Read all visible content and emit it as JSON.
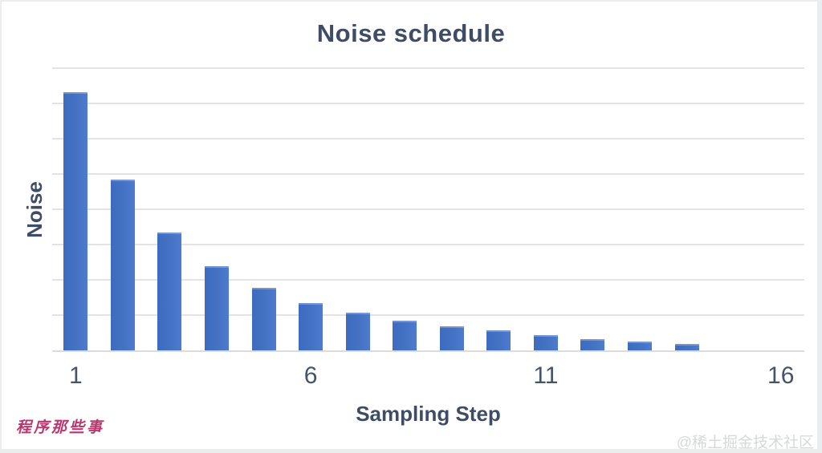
{
  "page": {
    "background": "#ffffff"
  },
  "chart_data": {
    "type": "bar",
    "title": "Noise schedule",
    "xlabel": "Sampling Step",
    "ylabel": "Noise",
    "categories": [
      1,
      2,
      3,
      4,
      5,
      6,
      7,
      8,
      9,
      10,
      11,
      12,
      13,
      14,
      15,
      16
    ],
    "values": [
      7.32,
      4.84,
      3.34,
      2.39,
      1.77,
      1.34,
      1.07,
      0.84,
      0.68,
      0.57,
      0.43,
      0.32,
      0.25,
      0.18,
      0,
      0
    ],
    "x_ticks": [
      {
        "label": "1",
        "position": 1
      },
      {
        "label": "6",
        "position": 6
      },
      {
        "label": "11",
        "position": 11
      },
      {
        "label": "16",
        "position": 16
      }
    ],
    "ylim": [
      0,
      8
    ],
    "y_tick_labels_visible": false,
    "gridline_interval": 1,
    "grid": "horizontal",
    "legend_position": "none",
    "bar_color": "#4472c4",
    "gridline_color": "#e3e3e3",
    "axis_text_color": "#3e4c66",
    "tick_text_color": "#44546a"
  },
  "watermarks": {
    "bottom_left": "程序那些事",
    "bottom_left_color": "#b9376d",
    "bottom_right": "@稀土掘金技术社区",
    "bottom_right_color": "#d7d9d9"
  }
}
